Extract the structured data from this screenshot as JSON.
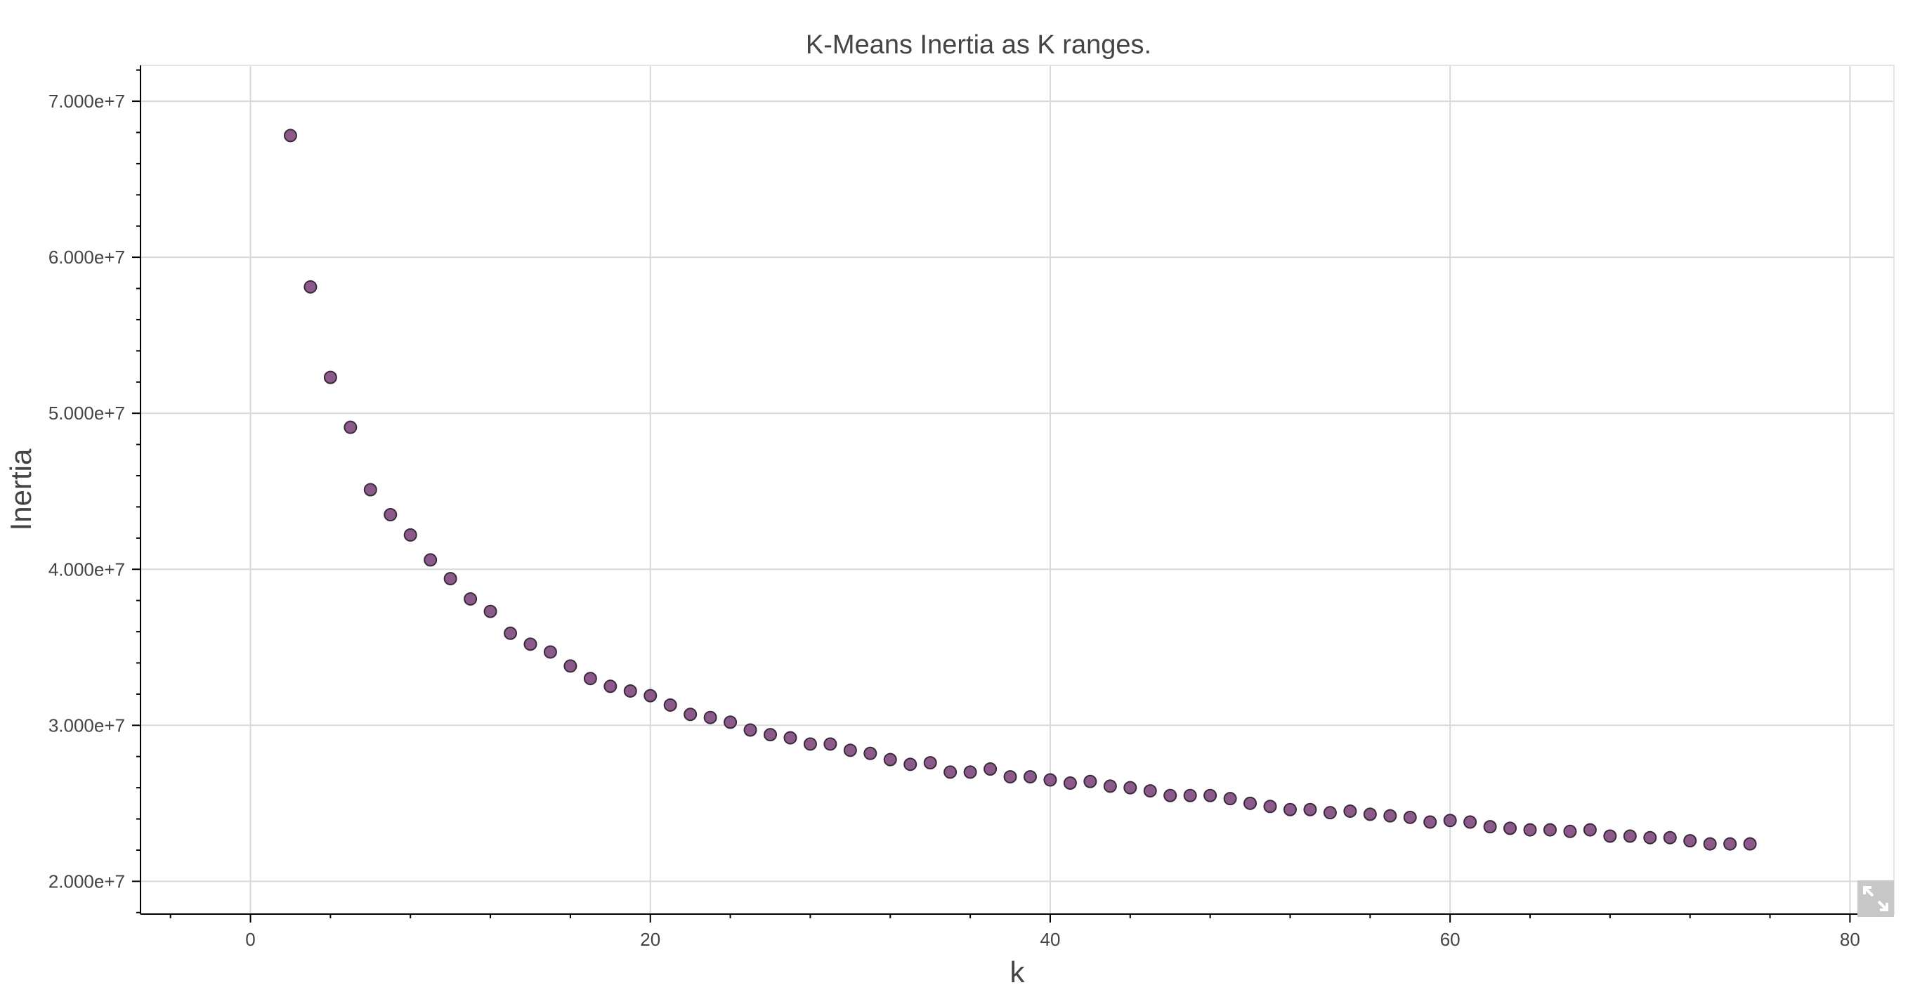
{
  "chart_data": {
    "type": "scatter",
    "title": "K-Means Inertia as K ranges.",
    "xlabel": "k",
    "ylabel": "Inertia",
    "xlim": [
      -5.5,
      82.2
    ],
    "ylim": [
      17900000,
      72300000
    ],
    "xticks": [
      0,
      20,
      40,
      60,
      80
    ],
    "xtick_labels": [
      "0",
      "20",
      "40",
      "60",
      "80"
    ],
    "yticks": [
      20000000,
      30000000,
      40000000,
      50000000,
      60000000,
      70000000
    ],
    "ytick_labels": [
      "2.000e+7",
      "3.000e+7",
      "4.000e+7",
      "5.000e+7",
      "6.000e+7",
      "7.000e+7"
    ],
    "grid": true,
    "marker_color": "#8b5a8b",
    "marker_edge_color": "#3a2a3a",
    "x": [
      2,
      3,
      4,
      5,
      6,
      7,
      8,
      9,
      10,
      11,
      12,
      13,
      14,
      15,
      16,
      17,
      18,
      19,
      20,
      21,
      22,
      23,
      24,
      25,
      26,
      27,
      28,
      29,
      30,
      31,
      32,
      33,
      34,
      35,
      36,
      37,
      38,
      39,
      40,
      41,
      42,
      43,
      44,
      45,
      46,
      47,
      48,
      49,
      50,
      51,
      52,
      53,
      54,
      55,
      56,
      57,
      58,
      59,
      60,
      61,
      62,
      63,
      64,
      65,
      66,
      67,
      68,
      69,
      70,
      71,
      72,
      73,
      74,
      75
    ],
    "y": [
      67800000,
      58100000,
      52300000,
      49100000,
      45100000,
      43500000,
      42200000,
      40600000,
      39400000,
      38100000,
      37300000,
      35900000,
      35200000,
      34700000,
      33800000,
      33000000,
      32500000,
      32200000,
      31900000,
      31300000,
      30700000,
      30500000,
      30200000,
      29700000,
      29400000,
      29200000,
      28800000,
      28800000,
      28400000,
      28200000,
      27800000,
      27500000,
      27600000,
      27000000,
      27000000,
      27200000,
      26700000,
      26700000,
      26500000,
      26300000,
      26400000,
      26100000,
      26000000,
      25800000,
      25500000,
      25500000,
      25500000,
      25300000,
      25000000,
      24800000,
      24600000,
      24600000,
      24400000,
      24500000,
      24300000,
      24200000,
      24100000,
      23800000,
      23900000,
      23800000,
      23500000,
      23400000,
      23300000,
      23300000,
      23200000,
      23300000,
      22900000,
      22900000,
      22800000,
      22800000,
      22600000,
      22400000,
      22400000,
      22400000
    ]
  },
  "toolbar": {
    "reset_icon": "expand-arrows-icon"
  }
}
